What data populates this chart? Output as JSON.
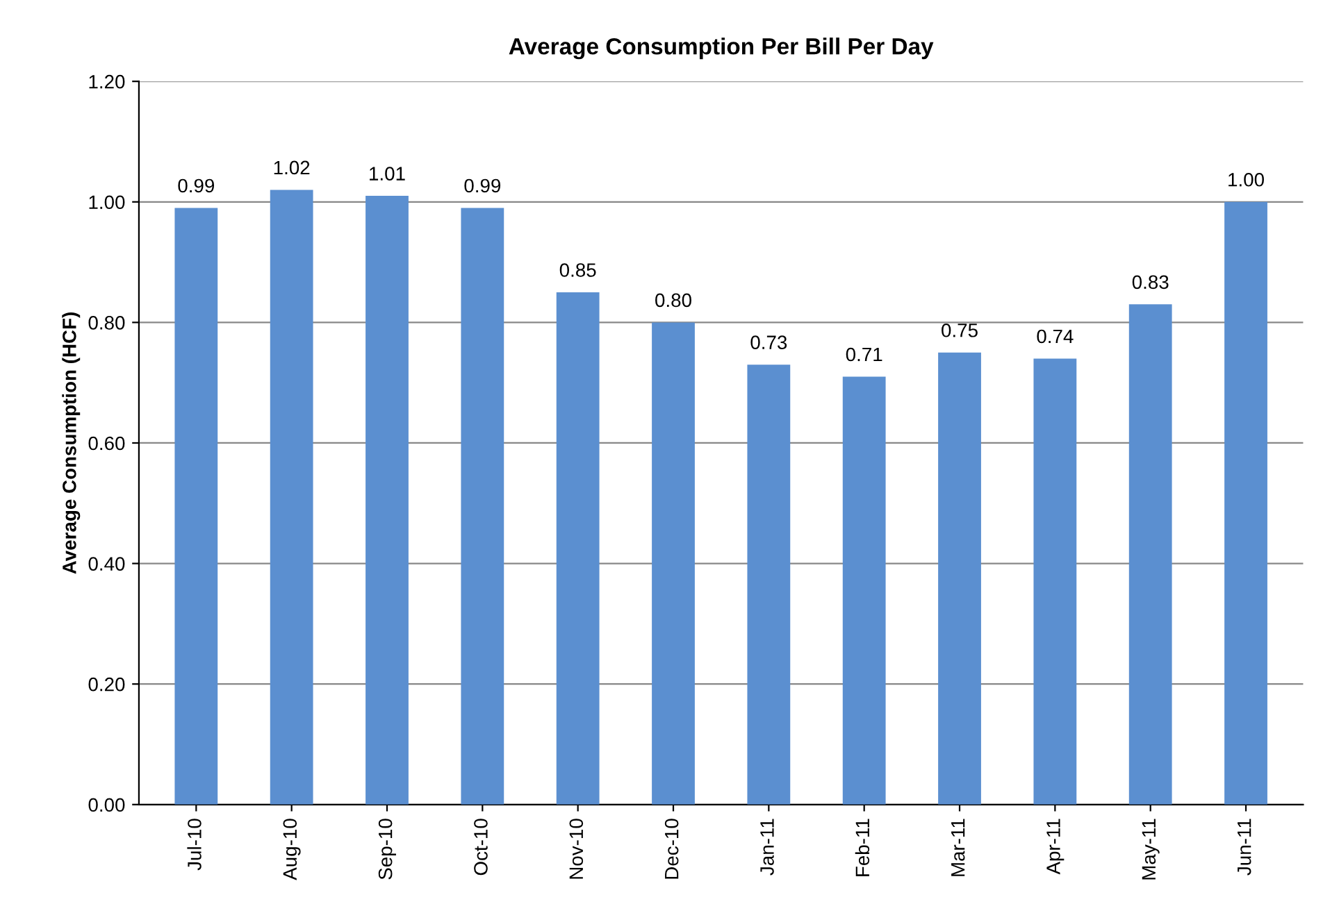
{
  "chart_data": {
    "type": "bar",
    "title": "Average Consumption Per Bill Per Day",
    "ylabel": "Average Consumption (HCF)",
    "categories": [
      "Jul-10",
      "Aug-10",
      "Sep-10",
      "Oct-10",
      "Nov-10",
      "Dec-10",
      "Jan-11",
      "Feb-11",
      "Mar-11",
      "Apr-11",
      "May-11",
      "Jun-11"
    ],
    "values": [
      0.99,
      1.02,
      1.01,
      0.99,
      0.85,
      0.8,
      0.73,
      0.71,
      0.75,
      0.74,
      0.83,
      1.0
    ],
    "value_labels": [
      "0.99",
      "1.02",
      "1.01",
      "0.99",
      "0.85",
      "0.80",
      "0.73",
      "0.71",
      "0.75",
      "0.74",
      "0.83",
      "1.00"
    ],
    "color": "#5b8fd0",
    "ylim": [
      0,
      1.2
    ],
    "yticks": [
      {
        "value": 0,
        "label": "0.00"
      },
      {
        "value": 0.2,
        "label": "0.20"
      },
      {
        "value": 0.4,
        "label": "0.40"
      },
      {
        "value": 0.6,
        "label": "0.60"
      },
      {
        "value": 0.8,
        "label": "0.80"
      },
      {
        "value": 1.0,
        "label": "1.00"
      },
      {
        "value": 1.2,
        "label": "1.20"
      }
    ],
    "grid": "y"
  }
}
